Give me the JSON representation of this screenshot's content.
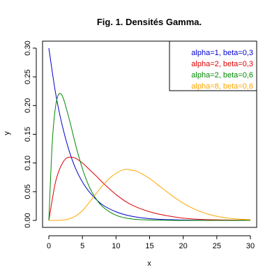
{
  "chart_data": {
    "type": "line",
    "title": "Fig. 1. Densités Gamma.",
    "xlabel": "x",
    "ylabel": "y",
    "xlim": [
      0,
      30
    ],
    "ylim": [
      0,
      0.3
    ],
    "x_ticks": [
      0,
      5,
      10,
      15,
      20,
      25,
      30
    ],
    "y_ticks": [
      "0.00",
      "0.05",
      "0.10",
      "0.15",
      "0.20",
      "0.25",
      "0.30"
    ],
    "grid": false,
    "legend_position": "top-right",
    "series": [
      {
        "name": "alpha=1, beta=0,3",
        "color": "#0000cc",
        "x": [
          0,
          1,
          2,
          3,
          4,
          5,
          6,
          7,
          8,
          10,
          12,
          15,
          20,
          25,
          30
        ],
        "y": [
          0.3,
          0.222,
          0.165,
          0.122,
          0.09,
          0.067,
          0.05,
          0.037,
          0.027,
          0.015,
          0.008,
          0.003,
          0.0007,
          0.0002,
          4e-05
        ]
      },
      {
        "name": "alpha=2, beta=0,3",
        "color": "#dd0000",
        "x": [
          0,
          1,
          2,
          3,
          3.33,
          4,
          5,
          6,
          7,
          8,
          10,
          12,
          15,
          20,
          25,
          30
        ],
        "y": [
          0,
          0.067,
          0.099,
          0.11,
          0.11,
          0.108,
          0.1,
          0.089,
          0.078,
          0.066,
          0.045,
          0.029,
          0.015,
          0.004,
          0.001,
          0.0004
        ]
      },
      {
        "name": "alpha=2, beta=0,6",
        "color": "#008800",
        "x": [
          0,
          0.5,
          1,
          1.67,
          2,
          3,
          4,
          5,
          6,
          7,
          8,
          10,
          12,
          15,
          20,
          30
        ],
        "y": [
          0,
          0.133,
          0.198,
          0.221,
          0.217,
          0.178,
          0.131,
          0.09,
          0.059,
          0.038,
          0.024,
          0.009,
          0.003,
          0.0007,
          4e-05,
          0
        ]
      },
      {
        "name": "alpha=8, beta=0,6",
        "color": "#ffa500",
        "x": [
          0,
          2,
          4,
          5,
          6,
          7,
          8,
          9,
          10,
          11,
          11.67,
          12,
          13,
          14,
          15,
          16,
          18,
          20,
          22,
          24,
          26,
          28,
          30
        ],
        "y": [
          0,
          0.0004,
          0.0077,
          0.017,
          0.031,
          0.046,
          0.061,
          0.073,
          0.082,
          0.088,
          0.089,
          0.088,
          0.086,
          0.08,
          0.073,
          0.064,
          0.046,
          0.03,
          0.018,
          0.01,
          0.005,
          0.0025,
          0.0012
        ]
      }
    ]
  }
}
